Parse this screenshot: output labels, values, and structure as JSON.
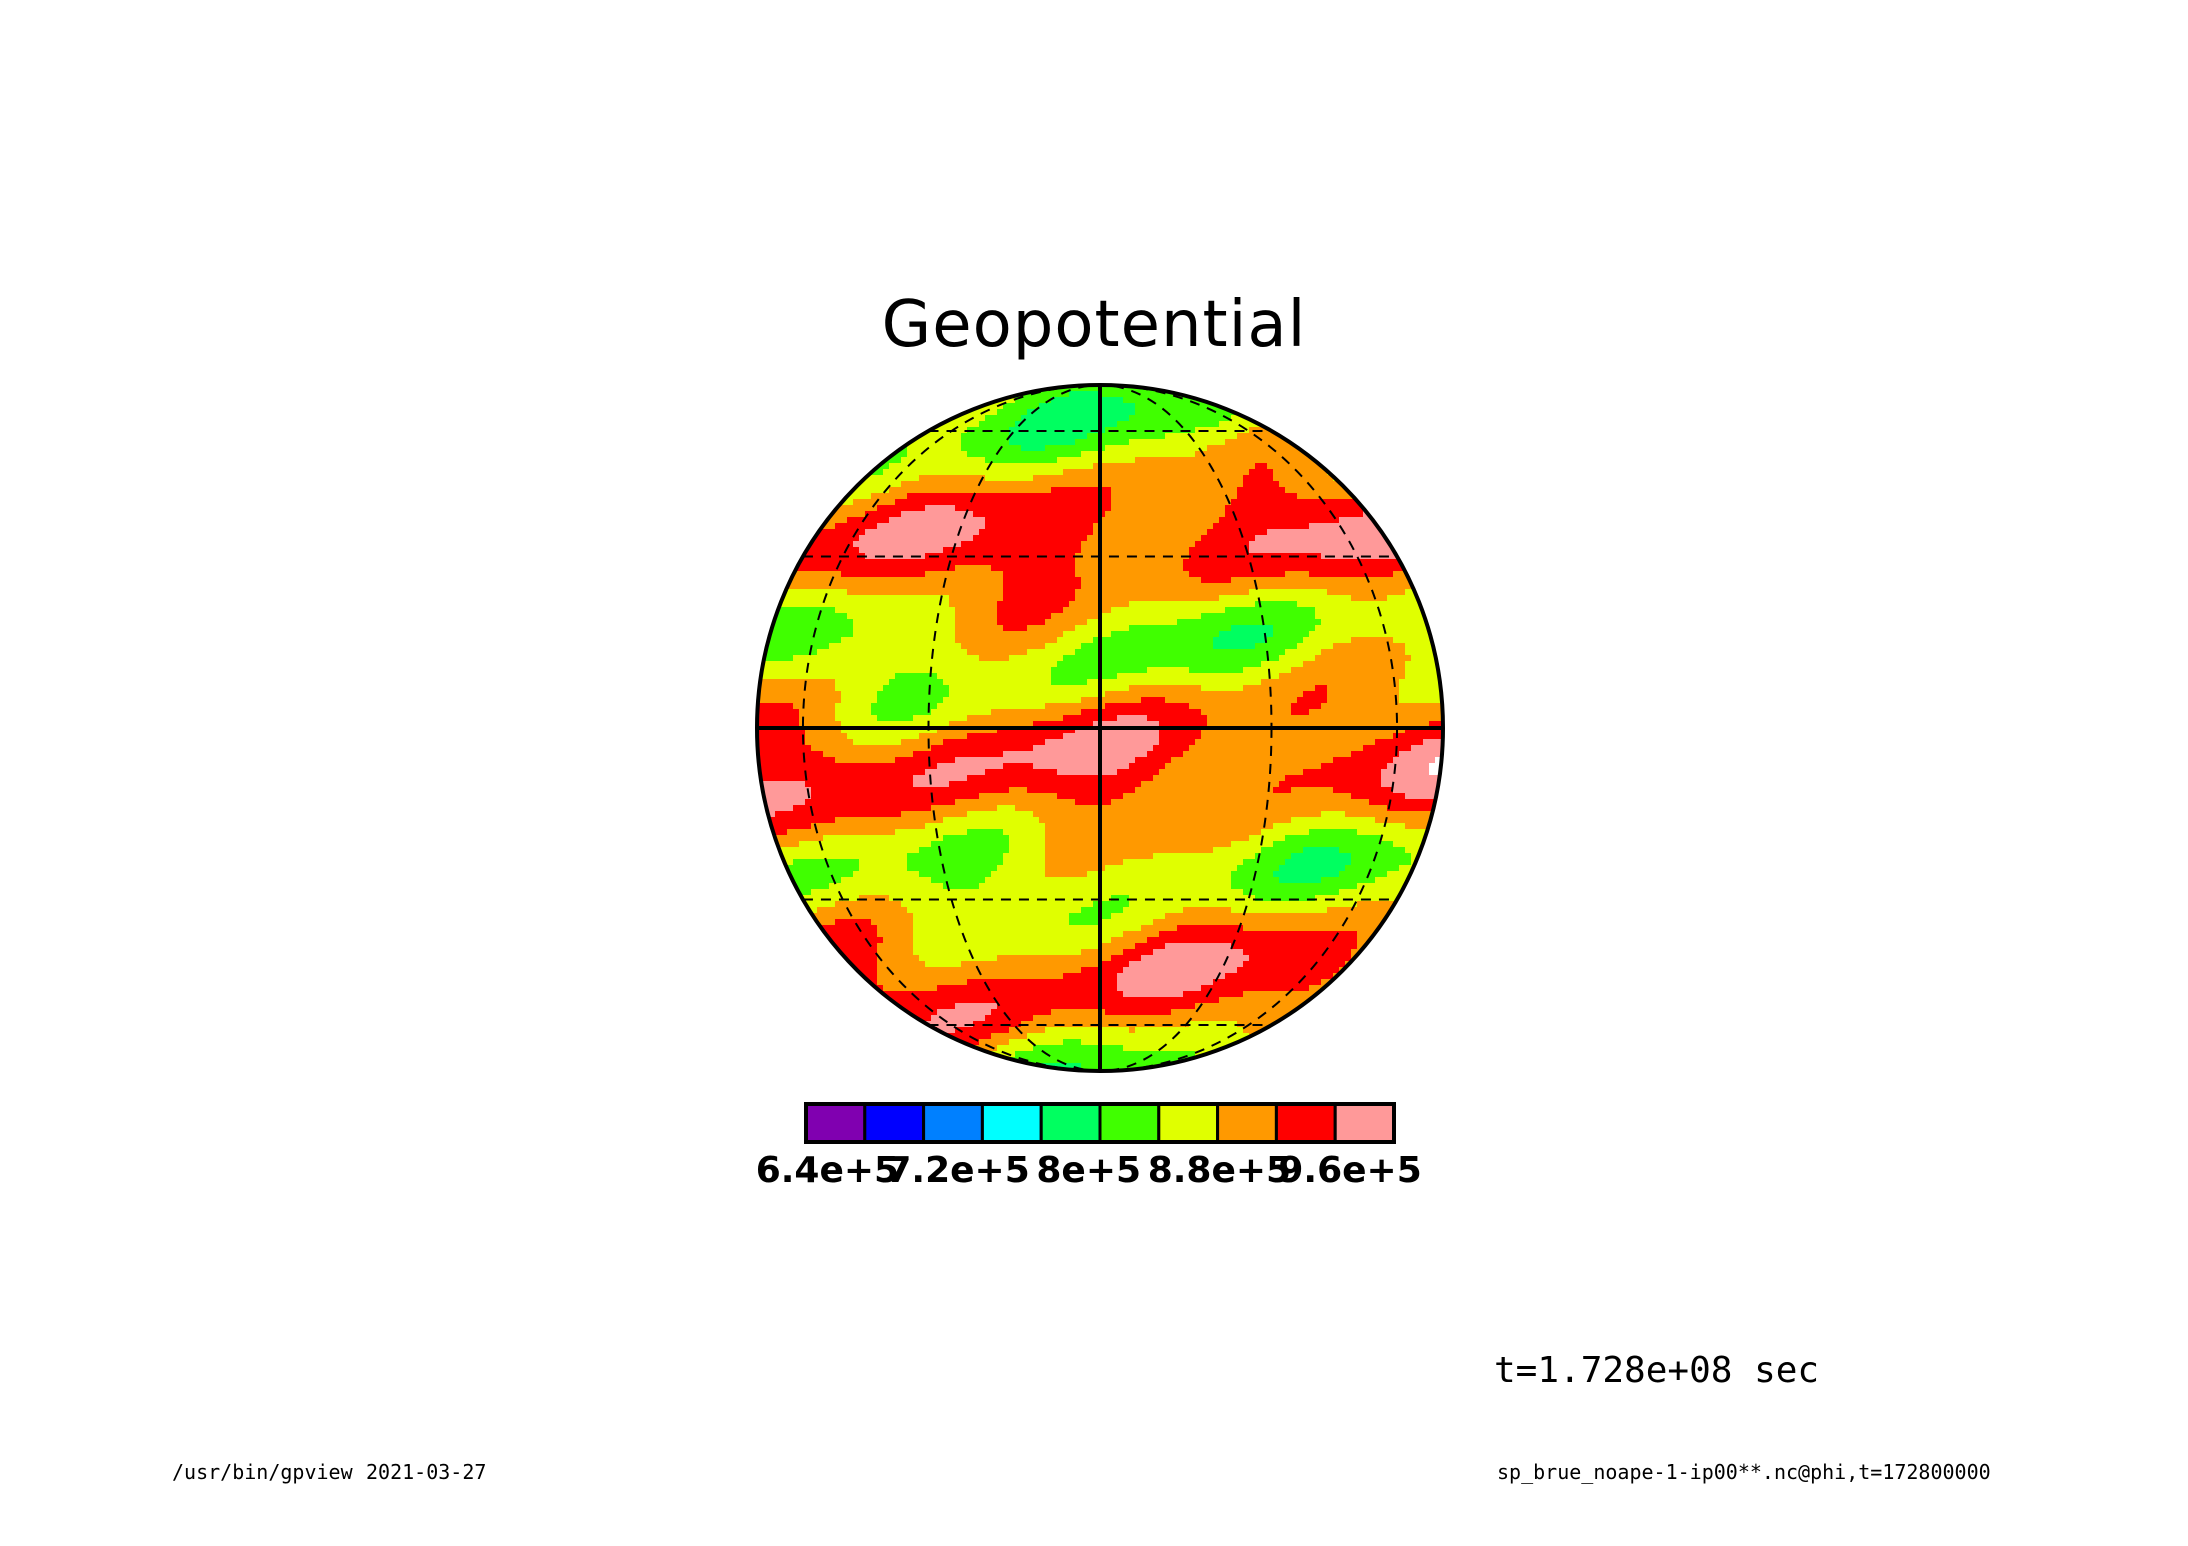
{
  "chart_data": {
    "type": "heatmap",
    "title": "Geopotential",
    "projection": "orthographic",
    "colorbar": {
      "colors": [
        "#8000b0",
        "#0000ff",
        "#0080ff",
        "#00ffff",
        "#00ff60",
        "#40ff00",
        "#e0ff00",
        "#ff9900",
        "#ff0000",
        "#ff9999"
      ],
      "tick_labels": [
        "6.4e+5",
        "7.2e+5",
        "8e+5",
        "8.8e+5",
        "9.6e+5"
      ],
      "ticks": [
        640000,
        720000,
        800000,
        880000,
        960000
      ],
      "range": [
        640000,
        1000000
      ],
      "above_max_color": "#ffffff"
    },
    "dominant_levels": [
      "9.6e+5 red bands at mid-latitudes",
      "8.8e+5–9.2e+5 yellow/orange near equator"
    ],
    "grid": true
  },
  "annotations": {
    "time_label": "t=1.728e+08 sec",
    "program_label": "/usr/bin/gpview",
    "date_label": "2021-03-27",
    "source_label": "sp_brue_noape-1-ip00**.nc@phi,t=172800000"
  }
}
